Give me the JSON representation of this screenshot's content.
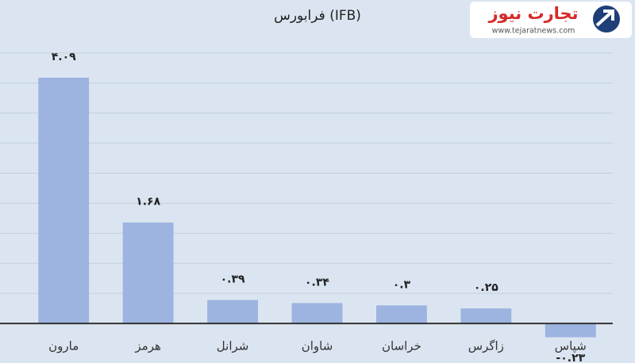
{
  "brand": {
    "name": "تجارت نیوز",
    "url": "www.tejaratnews.com"
  },
  "chart_data": {
    "type": "bar",
    "title": "فرابورس (IFB)",
    "categories": [
      "مارون",
      "هرمز",
      "شرانل",
      "شاوان",
      "خراسان",
      "زاگرس",
      "شپاس"
    ],
    "values": [
      4.09,
      1.68,
      0.39,
      0.34,
      0.3,
      0.25,
      -0.23
    ],
    "value_labels": [
      "۴.۰۹",
      "۱.۶۸",
      "۰.۳۹",
      "۰.۳۴",
      "۰.۳",
      "۰.۲۵",
      "-۰.۲۳"
    ],
    "color": "#9db4e0",
    "ylim": [
      -0.5,
      5
    ],
    "yticks": [
      0,
      0.5,
      1,
      1.5,
      2,
      2.5,
      3,
      3.5,
      4,
      4.5
    ],
    "grid": true
  }
}
